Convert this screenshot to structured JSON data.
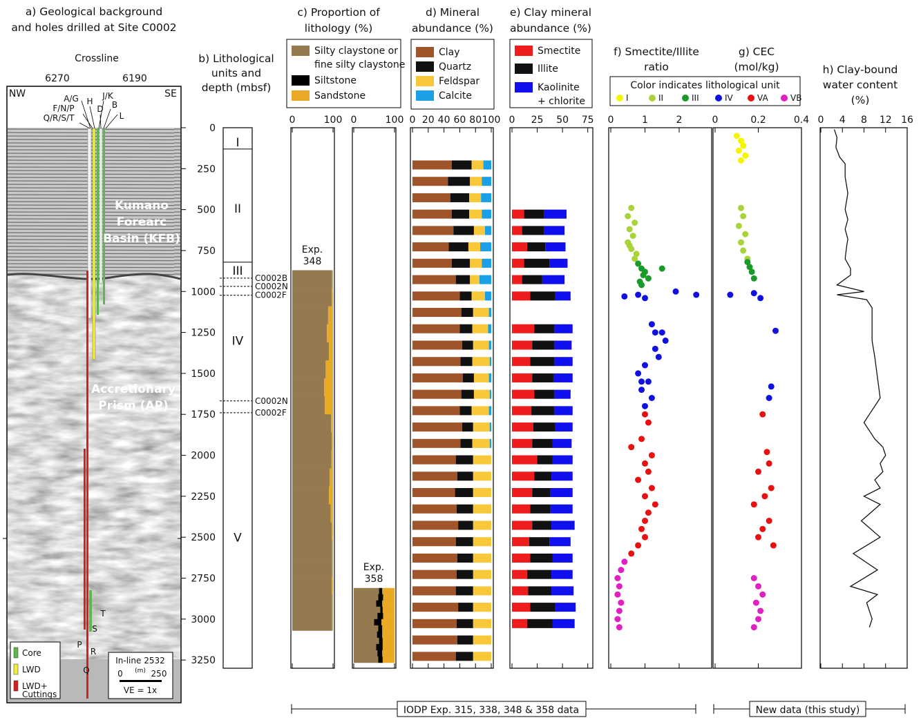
{
  "seismic": {
    "title": "a) Geological background\nand holes drilled at Site C0002",
    "axis_label": "Crossline",
    "tick_labels": [
      "6270",
      "6190"
    ],
    "sides": [
      "NW",
      "SE"
    ],
    "hole_labels": [
      "A/G",
      "H",
      "J/K",
      "F/N/P",
      "D",
      "B",
      "Q/R/S/T",
      "L"
    ],
    "regions": [
      "Kumano\nForearc\nBasin (KFB)",
      "Accretionary\nPrism (AP)"
    ],
    "bottom_labels": [
      "P",
      "T",
      "S",
      "R",
      "Q"
    ],
    "legend": [
      {
        "name": "Core",
        "color": "#5cb84a"
      },
      {
        "name": "LWD",
        "color": "#f2ee3a"
      },
      {
        "name": "LWD+\nCuttings",
        "color": "#d42020"
      }
    ],
    "scale": {
      "title": "In-line 2532",
      "labels": [
        "0",
        "(m)",
        "250"
      ],
      "note": "VE = 1x"
    }
  },
  "chart_data": [
    {
      "type": "units",
      "title": "b) Lithological\nunits and\ndepth (mbsf)",
      "ylim": [
        0,
        3300
      ],
      "yticks": [
        0,
        250,
        500,
        750,
        1000,
        1250,
        1500,
        1750,
        2000,
        2250,
        2500,
        2750,
        3000,
        3250
      ],
      "boundaries": [
        130,
        821
      ],
      "units": [
        {
          "label": "I",
          "depth": 84
        },
        {
          "label": "II",
          "depth": 489
        },
        {
          "label": "III",
          "depth": 868
        },
        {
          "label": "IV",
          "depth": 1297
        },
        {
          "label": "V",
          "depth": 2498
        }
      ],
      "holes": [
        {
          "label": "C0002B",
          "depth": 918
        },
        {
          "label": "C0002N",
          "depth": 969
        },
        {
          "label": "C0002F",
          "depth": 1023
        },
        {
          "label": "C0002N",
          "depth": 1668
        },
        {
          "label": "C0002F",
          "depth": 1740
        }
      ]
    },
    {
      "type": "stacked",
      "title": "c) Proportion of\nlithology (%)",
      "annotation": "Exp.\n348",
      "ylim": [
        0,
        3300
      ],
      "xlim": [
        0,
        100
      ],
      "xticks": [
        0,
        100
      ],
      "depth": [
        870,
        980,
        1090,
        1200,
        1310,
        1420,
        1530,
        1640,
        1750,
        1860,
        1970,
        2080,
        2190,
        2300,
        2410,
        2520,
        2630,
        2740,
        2850,
        2960
      ],
      "series": [
        {
          "name": "Silty claystone or\nfine silty claystone",
          "color": "#957a4f",
          "values": [
            98,
            97,
            88,
            85,
            90,
            82,
            78,
            80,
            95,
            97,
            96,
            92,
            90,
            94,
            97,
            98,
            98,
            97,
            98,
            98
          ]
        },
        {
          "name": "Siltstone",
          "color": "#000000",
          "values": [
            0,
            0,
            0,
            0,
            0,
            0,
            0,
            0,
            0,
            0,
            0,
            0,
            0,
            0,
            0,
            0,
            0,
            0,
            0,
            0
          ]
        },
        {
          "name": "Sandstone",
          "color": "#e9a825",
          "values": [
            2,
            3,
            12,
            15,
            10,
            18,
            22,
            20,
            5,
            3,
            4,
            8,
            10,
            6,
            3,
            2,
            2,
            3,
            2,
            2
          ]
        }
      ]
    },
    {
      "type": "stacked",
      "annotation": "Exp.\n358",
      "ylim": [
        0,
        3300
      ],
      "xlim": [
        0,
        100
      ],
      "xticks": [
        0,
        100
      ],
      "depth": [
        2810,
        2848,
        2886,
        2924,
        2962,
        3000,
        3038,
        3076,
        3114,
        3152,
        3190,
        3228
      ],
      "series": [
        {
          "color": "#957a4f",
          "values": [
            62,
            60,
            55,
            65,
            58,
            50,
            60,
            57,
            62,
            55,
            58,
            60
          ]
        },
        {
          "color": "#000000",
          "values": [
            8,
            12,
            15,
            6,
            14,
            18,
            10,
            13,
            9,
            16,
            12,
            11
          ]
        },
        {
          "color": "#e9a825",
          "values": [
            30,
            28,
            30,
            29,
            28,
            32,
            30,
            30,
            29,
            29,
            30,
            29
          ]
        }
      ]
    },
    {
      "type": "stacked",
      "title": "d) Mineral\nabundance (%)",
      "ylim": [
        0,
        3300
      ],
      "xlim": [
        0,
        100
      ],
      "xticks": [
        0,
        20,
        40,
        60,
        80,
        100
      ],
      "depth": [
        200,
        300,
        400,
        500,
        600,
        700,
        800,
        900,
        1000,
        1100,
        1200,
        1300,
        1400,
        1500,
        1600,
        1700,
        1800,
        1900,
        2000,
        2100,
        2200,
        2300,
        2400,
        2500,
        2600,
        2700,
        2800,
        2900,
        3000,
        3100,
        3200
      ],
      "series": [
        {
          "name": "Clay",
          "color": "#a0542a",
          "values": [
            50,
            45,
            48,
            50,
            52,
            46,
            50,
            55,
            60,
            62,
            60,
            63,
            61,
            64,
            62,
            60,
            63,
            61,
            55,
            57,
            54,
            56,
            58,
            55,
            57,
            56,
            55,
            58,
            56,
            57,
            55
          ]
        },
        {
          "name": "Quartz",
          "color": "#111111",
          "values": [
            25,
            28,
            24,
            22,
            26,
            25,
            23,
            18,
            15,
            15,
            16,
            14,
            15,
            14,
            16,
            15,
            14,
            15,
            22,
            20,
            23,
            21,
            19,
            22,
            20,
            21,
            22,
            19,
            21,
            20,
            22
          ]
        },
        {
          "name": "Feldspar",
          "color": "#f8c83a",
          "values": [
            15,
            15,
            15,
            16,
            14,
            15,
            15,
            12,
            17,
            20,
            20,
            20,
            22,
            19,
            20,
            22,
            21,
            22,
            23,
            23,
            23,
            23,
            23,
            23,
            23,
            23,
            23,
            23,
            23,
            23,
            23
          ]
        },
        {
          "name": "Calcite",
          "color": "#1ba0e8",
          "values": [
            10,
            12,
            13,
            12,
            8,
            14,
            12,
            15,
            8,
            3,
            4,
            3,
            2,
            3,
            2,
            3,
            2,
            2,
            0,
            0,
            0,
            0,
            0,
            0,
            0,
            0,
            0,
            0,
            0,
            0,
            0
          ]
        }
      ]
    },
    {
      "type": "stacked",
      "title": "e) Clay mineral\nabundance (%)",
      "ylim": [
        0,
        3300
      ],
      "xlim": [
        0,
        80
      ],
      "xticks": [
        0,
        25,
        50,
        75
      ],
      "depth": [
        500,
        600,
        700,
        800,
        900,
        1000,
        1200,
        1300,
        1400,
        1500,
        1600,
        1700,
        1800,
        1900,
        2000,
        2100,
        2200,
        2300,
        2400,
        2500,
        2600,
        2700,
        2800,
        2900,
        3000
      ],
      "series": [
        {
          "name": "Smectite",
          "color": "#ee1c1c",
          "values": [
            12,
            10,
            15,
            12,
            10,
            18,
            22,
            20,
            18,
            20,
            22,
            19,
            21,
            20,
            25,
            22,
            20,
            18,
            20,
            17,
            18,
            15,
            16,
            18,
            15
          ]
        },
        {
          "name": "Illite",
          "color": "#111111",
          "values": [
            20,
            22,
            18,
            25,
            20,
            25,
            20,
            22,
            24,
            21,
            20,
            23,
            22,
            20,
            15,
            17,
            18,
            20,
            19,
            20,
            22,
            24,
            23,
            25,
            25
          ]
        },
        {
          "name": "Kaolinite\n+ chlorite",
          "color": "#1010ee",
          "values": [
            22,
            20,
            20,
            18,
            22,
            15,
            18,
            17,
            18,
            19,
            16,
            18,
            17,
            19,
            20,
            21,
            22,
            22,
            23,
            21,
            20,
            21,
            22,
            20,
            22
          ]
        }
      ]
    },
    {
      "type": "scatter",
      "title": "f) Smectite/Illite\nratio",
      "ylim": [
        0,
        3300
      ],
      "xlim": [
        0,
        2.95
      ],
      "xticks": [
        0,
        1,
        2
      ],
      "series": [
        {
          "color": "#a8d43a",
          "values": [
            0.6,
            0.5,
            0.7,
            0.55,
            0.65,
            0.5,
            0.6,
            0.75,
            0.7,
            0.55
          ],
          "depth": [
            490,
            540,
            580,
            620,
            660,
            700,
            740,
            770,
            800,
            720
          ]
        },
        {
          "color": "#1a9a2a",
          "values": [
            0.8,
            0.9,
            1.0,
            0.95,
            1.1,
            0.85,
            1.5,
            0.9
          ],
          "depth": [
            830,
            860,
            880,
            900,
            920,
            940,
            860,
            960
          ]
        },
        {
          "color": "#1010e0",
          "values": [
            0.4,
            0.8,
            1.0,
            1.9,
            2.5,
            1.2,
            1.5,
            1.6,
            1.3,
            1.4,
            1.0,
            0.8,
            1.1,
            0.9,
            1.2,
            1.0,
            1.3,
            0.9
          ],
          "depth": [
            1030,
            1020,
            1040,
            1000,
            1020,
            1200,
            1250,
            1300,
            1350,
            1400,
            1450,
            1500,
            1550,
            1600,
            1650,
            1700,
            1250,
            1550
          ]
        },
        {
          "color": "#e81010",
          "values": [
            1.0,
            1.1,
            0.6,
            0.9,
            1.2,
            1.0,
            1.1,
            0.8,
            1.2,
            1.0,
            1.3,
            1.1,
            1.0,
            0.9,
            1.0,
            0.8,
            0.6
          ],
          "depth": [
            1750,
            1800,
            1950,
            1900,
            2000,
            2050,
            2100,
            2150,
            2200,
            2250,
            2300,
            2350,
            2400,
            2450,
            2500,
            2550,
            2600
          ]
        },
        {
          "color": "#e020c0",
          "values": [
            0.4,
            0.3,
            0.2,
            0.25,
            0.2,
            0.3,
            0.25,
            0.2,
            0.25
          ],
          "depth": [
            2650,
            2700,
            2750,
            2800,
            2850,
            2900,
            2950,
            3000,
            3050
          ]
        }
      ]
    },
    {
      "type": "scatter",
      "title": "g) CEC\n(mol/kg)",
      "legend_title": "Color indicates lithological unit",
      "ylim": [
        0,
        3300
      ],
      "xlim": [
        0,
        0.4
      ],
      "xticks": [
        0,
        0.2,
        0.4
      ],
      "series": [
        {
          "name": "I",
          "color": "#f5f500",
          "values": [
            0.1,
            0.12,
            0.13,
            0.11,
            0.14,
            0.12
          ],
          "depth": [
            50,
            80,
            110,
            140,
            170,
            200
          ]
        },
        {
          "name": "II",
          "color": "#a8d43a",
          "values": [
            0.12,
            0.13,
            0.11,
            0.14,
            0.12,
            0.13,
            0.15
          ],
          "depth": [
            490,
            540,
            600,
            650,
            700,
            750,
            800
          ]
        },
        {
          "name": "III",
          "color": "#1a9a2a",
          "values": [
            0.15,
            0.16,
            0.17,
            0.18
          ],
          "depth": [
            820,
            850,
            880,
            920
          ]
        },
        {
          "name": "IV",
          "color": "#1010e0",
          "values": [
            0.07,
            0.18,
            0.21,
            0.28,
            0.26,
            0.25
          ],
          "depth": [
            1020,
            1010,
            1040,
            1240,
            1580,
            1650
          ]
        },
        {
          "name": "VA",
          "color": "#e81010",
          "values": [
            0.22,
            0.24,
            0.25,
            0.2,
            0.26,
            0.23,
            0.18,
            0.25,
            0.22,
            0.27,
            0.2
          ],
          "depth": [
            1750,
            1980,
            2050,
            2100,
            2200,
            2250,
            2300,
            2400,
            2450,
            2550,
            2500
          ]
        },
        {
          "name": "VB",
          "color": "#e020c0",
          "values": [
            0.18,
            0.2,
            0.22,
            0.19,
            0.21,
            0.2,
            0.18
          ],
          "depth": [
            2750,
            2800,
            2850,
            2900,
            2950,
            3000,
            3050
          ]
        }
      ]
    },
    {
      "type": "line",
      "title": "h) Clay-bound\nwater content\n(%)",
      "ylim": [
        0,
        3300
      ],
      "xlim": [
        0,
        16
      ],
      "xticks": [
        0,
        4,
        8,
        12,
        16
      ],
      "color": "#111111",
      "depth": [
        10,
        60,
        120,
        180,
        220,
        300,
        400,
        500,
        560,
        620,
        680,
        720,
        800,
        860,
        900,
        960,
        1000,
        1020,
        1050,
        1100,
        1300,
        1400,
        1650,
        1750,
        1800,
        1900,
        1950,
        2000,
        2050,
        2100,
        2150,
        2200,
        2250,
        2300,
        2400,
        2500,
        2600,
        2700,
        2800,
        2850,
        2900,
        3000,
        3050
      ],
      "values": [
        2.5,
        3,
        2.8,
        3.5,
        4.5,
        4.5,
        5,
        4.5,
        5,
        4.5,
        5,
        4.8,
        4.5,
        5.5,
        5.5,
        3,
        8,
        3,
        8.5,
        9.5,
        9.5,
        10,
        11,
        9,
        8,
        10,
        11.5,
        12,
        11,
        11.5,
        10,
        11,
        8,
        11,
        7.5,
        11,
        6,
        10.5,
        5.5,
        10.5,
        8.5,
        9.5,
        9
      ]
    }
  ],
  "footer": {
    "left": "IODP Exp. 315, 338, 348 & 358  data",
    "right": "New data (this study)"
  }
}
